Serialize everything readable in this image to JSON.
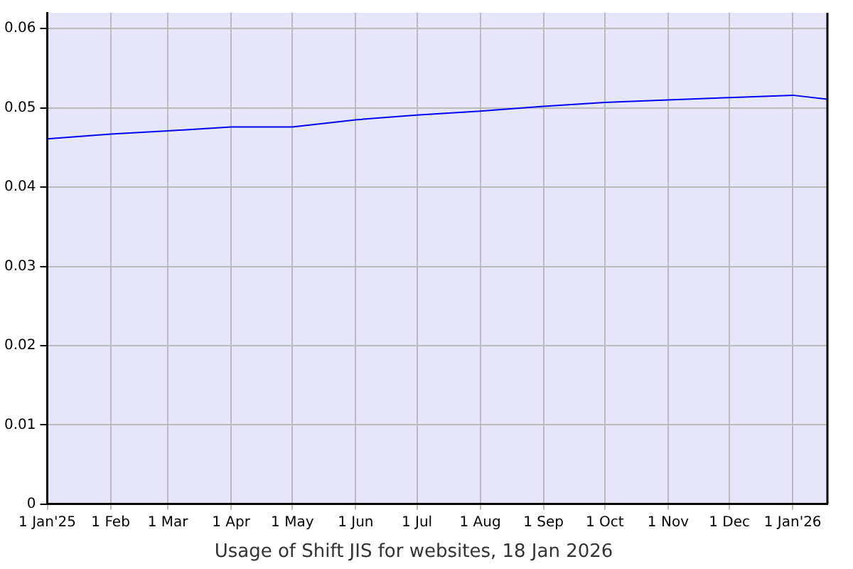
{
  "chart_data": {
    "type": "line",
    "title": "Usage of Shift JIS for websites, 18 Jan 2026",
    "x": [
      "2025-01-01",
      "2025-02-01",
      "2025-03-01",
      "2025-04-01",
      "2025-05-01",
      "2025-06-01",
      "2025-07-01",
      "2025-08-01",
      "2025-09-01",
      "2025-10-01",
      "2025-11-01",
      "2025-12-01",
      "2026-01-01",
      "2026-01-18"
    ],
    "series": [
      {
        "color": "#0000ff",
        "values": [
          0.0461,
          0.0467,
          0.0471,
          0.0476,
          0.0476,
          0.0485,
          0.0491,
          0.0496,
          0.0502,
          0.0507,
          0.051,
          0.0513,
          0.0516,
          0.0511
        ]
      }
    ],
    "xlim": [
      "2025-01-01",
      "2026-01-18"
    ],
    "xticks": [
      {
        "value": "2025-01-01",
        "label": "1 Jan'25"
      },
      {
        "value": "2025-02-01",
        "label": "1 Feb"
      },
      {
        "value": "2025-03-01",
        "label": "1 Mar"
      },
      {
        "value": "2025-04-01",
        "label": "1 Apr"
      },
      {
        "value": "2025-05-01",
        "label": "1 May"
      },
      {
        "value": "2025-06-01",
        "label": "1 Jun"
      },
      {
        "value": "2025-07-01",
        "label": "1 Jul"
      },
      {
        "value": "2025-08-01",
        "label": "1 Aug"
      },
      {
        "value": "2025-09-01",
        "label": "1 Sep"
      },
      {
        "value": "2025-10-01",
        "label": "1 Oct"
      },
      {
        "value": "2025-11-01",
        "label": "1 Nov"
      },
      {
        "value": "2025-12-01",
        "label": "1 Dec"
      },
      {
        "value": "2026-01-01",
        "label": "1 Jan'26"
      }
    ],
    "ylim": [
      0,
      0.062
    ],
    "yticks": [
      0,
      0.01,
      0.02,
      0.03,
      0.04,
      0.05,
      0.06
    ],
    "grid": true,
    "legend": false,
    "marker": "none",
    "line_style": "solid"
  }
}
